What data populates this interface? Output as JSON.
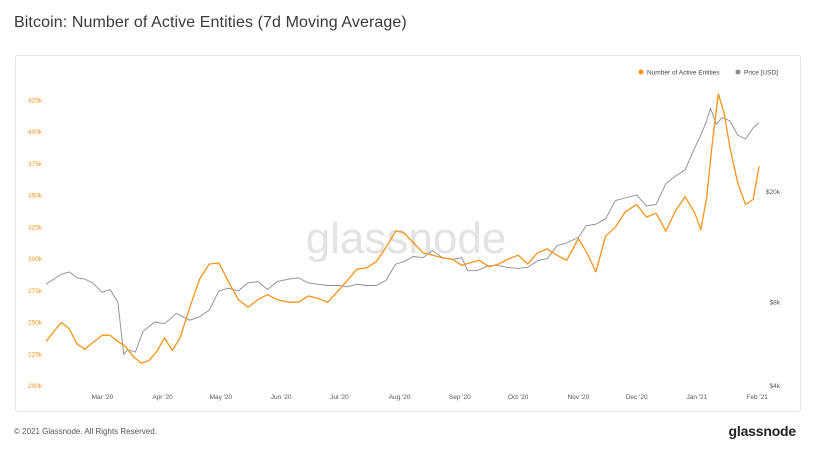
{
  "title": "Bitcoin: Number of Active Entities (7d Moving Average)",
  "footer": {
    "copyright": "© 2021 Glassnode. All Rights Reserved.",
    "brand": "glassnode"
  },
  "watermark": "glassnode",
  "colors": {
    "entities": "#f7931a",
    "price": "#8c8c8c",
    "left_axis_text": "#f7931a",
    "right_axis_text": "#555555"
  },
  "chart_data": {
    "type": "line",
    "title": "Bitcoin: Number of Active Entities (7d Moving Average)",
    "legend": {
      "placement": "top-right"
    },
    "grid": false,
    "x_ticks": [
      "Mar '20",
      "Apr '20",
      "May '20",
      "Jun '20",
      "Jul '20",
      "Aug '20",
      "Sep '20",
      "Oct '20",
      "Nov '20",
      "Dec '20",
      "Jan '21",
      "Feb '21"
    ],
    "y_left": {
      "ticks": [
        "200k",
        "225k",
        "250k",
        "275k",
        "300k",
        "325k",
        "350k",
        "375k",
        "400k",
        "425k"
      ],
      "ylim": [
        200000,
        430000
      ]
    },
    "y_right": {
      "scale": "log",
      "ticks": [
        "$4k",
        "$8k",
        "$20k"
      ],
      "ylim": [
        4000,
        45000
      ]
    },
    "series": [
      {
        "name": "Number of Active Entities",
        "axis": "left",
        "x": [
          "2020-02-01",
          "2020-02-05",
          "2020-02-09",
          "2020-02-13",
          "2020-02-17",
          "2020-02-21",
          "2020-02-25",
          "2020-03-01",
          "2020-03-05",
          "2020-03-09",
          "2020-03-13",
          "2020-03-17",
          "2020-03-21",
          "2020-03-25",
          "2020-03-29",
          "2020-04-02",
          "2020-04-06",
          "2020-04-10",
          "2020-04-15",
          "2020-04-20",
          "2020-04-25",
          "2020-04-30",
          "2020-05-05",
          "2020-05-10",
          "2020-05-15",
          "2020-05-20",
          "2020-05-25",
          "2020-05-30",
          "2020-06-05",
          "2020-06-10",
          "2020-06-15",
          "2020-06-20",
          "2020-06-25",
          "2020-07-01",
          "2020-07-05",
          "2020-07-10",
          "2020-07-15",
          "2020-07-20",
          "2020-07-25",
          "2020-07-30",
          "2020-08-03",
          "2020-08-08",
          "2020-08-13",
          "2020-08-18",
          "2020-08-23",
          "2020-08-28",
          "2020-09-02",
          "2020-09-06",
          "2020-09-11",
          "2020-09-16",
          "2020-09-21",
          "2020-09-26",
          "2020-10-01",
          "2020-10-06",
          "2020-10-11",
          "2020-10-16",
          "2020-10-21",
          "2020-10-26",
          "2020-11-01",
          "2020-11-05",
          "2020-11-10",
          "2020-11-15",
          "2020-11-20",
          "2020-11-25",
          "2020-12-01",
          "2020-12-06",
          "2020-12-11",
          "2020-12-16",
          "2020-12-21",
          "2020-12-26",
          "2020-12-31",
          "2021-01-03",
          "2021-01-06",
          "2021-01-09",
          "2021-01-12",
          "2021-01-15",
          "2021-01-18",
          "2021-01-22",
          "2021-01-26",
          "2021-01-30",
          "2021-02-02"
        ],
        "values": [
          235000,
          243000,
          250000,
          245000,
          233000,
          229000,
          234000,
          240000,
          240000,
          235000,
          231000,
          223000,
          218000,
          220000,
          227000,
          238000,
          228000,
          238000,
          262000,
          284000,
          296000,
          297000,
          282000,
          268000,
          262000,
          268000,
          272000,
          268000,
          266000,
          266000,
          271000,
          269000,
          266000,
          276000,
          283000,
          292000,
          293000,
          298000,
          309000,
          322000,
          321000,
          313000,
          305000,
          303000,
          301000,
          300000,
          295000,
          297000,
          299000,
          294000,
          296000,
          300000,
          303000,
          296000,
          305000,
          308000,
          303000,
          299000,
          316000,
          306000,
          290000,
          318000,
          325000,
          337000,
          343000,
          333000,
          336000,
          322000,
          338000,
          349000,
          336000,
          323000,
          348000,
          392000,
          430000,
          415000,
          388000,
          360000,
          343000,
          347000,
          373000
        ]
      },
      {
        "name": "Price [USD]",
        "axis": "right",
        "x": [
          "2020-02-01",
          "2020-02-05",
          "2020-02-09",
          "2020-02-13",
          "2020-02-17",
          "2020-02-21",
          "2020-02-25",
          "2020-03-01",
          "2020-03-05",
          "2020-03-09",
          "2020-03-12",
          "2020-03-14",
          "2020-03-18",
          "2020-03-22",
          "2020-03-28",
          "2020-04-02",
          "2020-04-08",
          "2020-04-15",
          "2020-04-20",
          "2020-04-25",
          "2020-04-30",
          "2020-05-05",
          "2020-05-10",
          "2020-05-15",
          "2020-05-20",
          "2020-05-25",
          "2020-05-30",
          "2020-06-05",
          "2020-06-10",
          "2020-06-15",
          "2020-06-20",
          "2020-06-25",
          "2020-07-01",
          "2020-07-05",
          "2020-07-10",
          "2020-07-15",
          "2020-07-20",
          "2020-07-25",
          "2020-07-30",
          "2020-08-03",
          "2020-08-08",
          "2020-08-13",
          "2020-08-18",
          "2020-08-23",
          "2020-08-28",
          "2020-09-02",
          "2020-09-05",
          "2020-09-10",
          "2020-09-15",
          "2020-09-20",
          "2020-09-25",
          "2020-10-01",
          "2020-10-06",
          "2020-10-11",
          "2020-10-16",
          "2020-10-21",
          "2020-10-26",
          "2020-11-01",
          "2020-11-05",
          "2020-11-10",
          "2020-11-15",
          "2020-11-20",
          "2020-11-25",
          "2020-12-01",
          "2020-12-06",
          "2020-12-11",
          "2020-12-16",
          "2020-12-21",
          "2020-12-26",
          "2020-12-31",
          "2021-01-03",
          "2021-01-06",
          "2021-01-08",
          "2021-01-11",
          "2021-01-14",
          "2021-01-18",
          "2021-01-22",
          "2021-01-26",
          "2021-01-30",
          "2021-02-02"
        ],
        "values": [
          9300,
          9700,
          10100,
          10300,
          9800,
          9700,
          9400,
          8700,
          8900,
          8000,
          5200,
          5400,
          5300,
          6300,
          6800,
          6700,
          7300,
          6900,
          7100,
          7500,
          8800,
          9000,
          8800,
          9400,
          9500,
          8900,
          9500,
          9700,
          9800,
          9400,
          9300,
          9200,
          9200,
          9100,
          9300,
          9200,
          9200,
          9600,
          11000,
          11200,
          11700,
          11600,
          12300,
          11600,
          11400,
          11600,
          10400,
          10400,
          10800,
          10900,
          10700,
          10600,
          10700,
          11300,
          11500,
          12800,
          13100,
          13700,
          15100,
          15300,
          16000,
          18600,
          19000,
          19500,
          17800,
          18000,
          21400,
          22800,
          24000,
          28900,
          32000,
          36000,
          40000,
          35000,
          37000,
          36000,
          32000,
          31000,
          34000,
          35500
        ]
      }
    ]
  }
}
